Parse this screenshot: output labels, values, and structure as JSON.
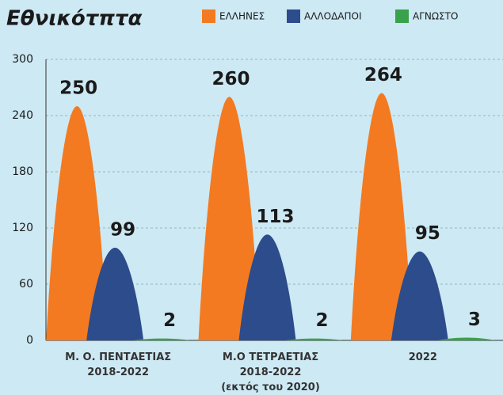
{
  "chart_data": {
    "type": "bar",
    "title": "Εθνικότπτα",
    "categories": [
      [
        "Μ. Ο. ΠΕΝΤΑΕΤΙΑΣ",
        "2018-2022"
      ],
      [
        "Μ.Ο ΤΕΤΡΑΕΤΙΑΣ",
        "2018-2022",
        "(εκτός του 2020)"
      ],
      [
        "2022"
      ]
    ],
    "series": [
      {
        "name": "ΕΛΛΗΝΕΣ",
        "color": "#f37a21",
        "values": [
          250,
          260,
          264
        ]
      },
      {
        "name": "ΑΛΛΟΔΑΠΟΙ",
        "color": "#2c4c8c",
        "values": [
          99,
          113,
          95
        ]
      },
      {
        "name": "ΑΓΝΩΣΤΟ",
        "color": "#3aa24c",
        "values": [
          2,
          2,
          3
        ]
      }
    ],
    "ylim": [
      0,
      300
    ],
    "yticks": [
      0,
      60,
      120,
      180,
      240,
      300
    ],
    "grid": true
  }
}
